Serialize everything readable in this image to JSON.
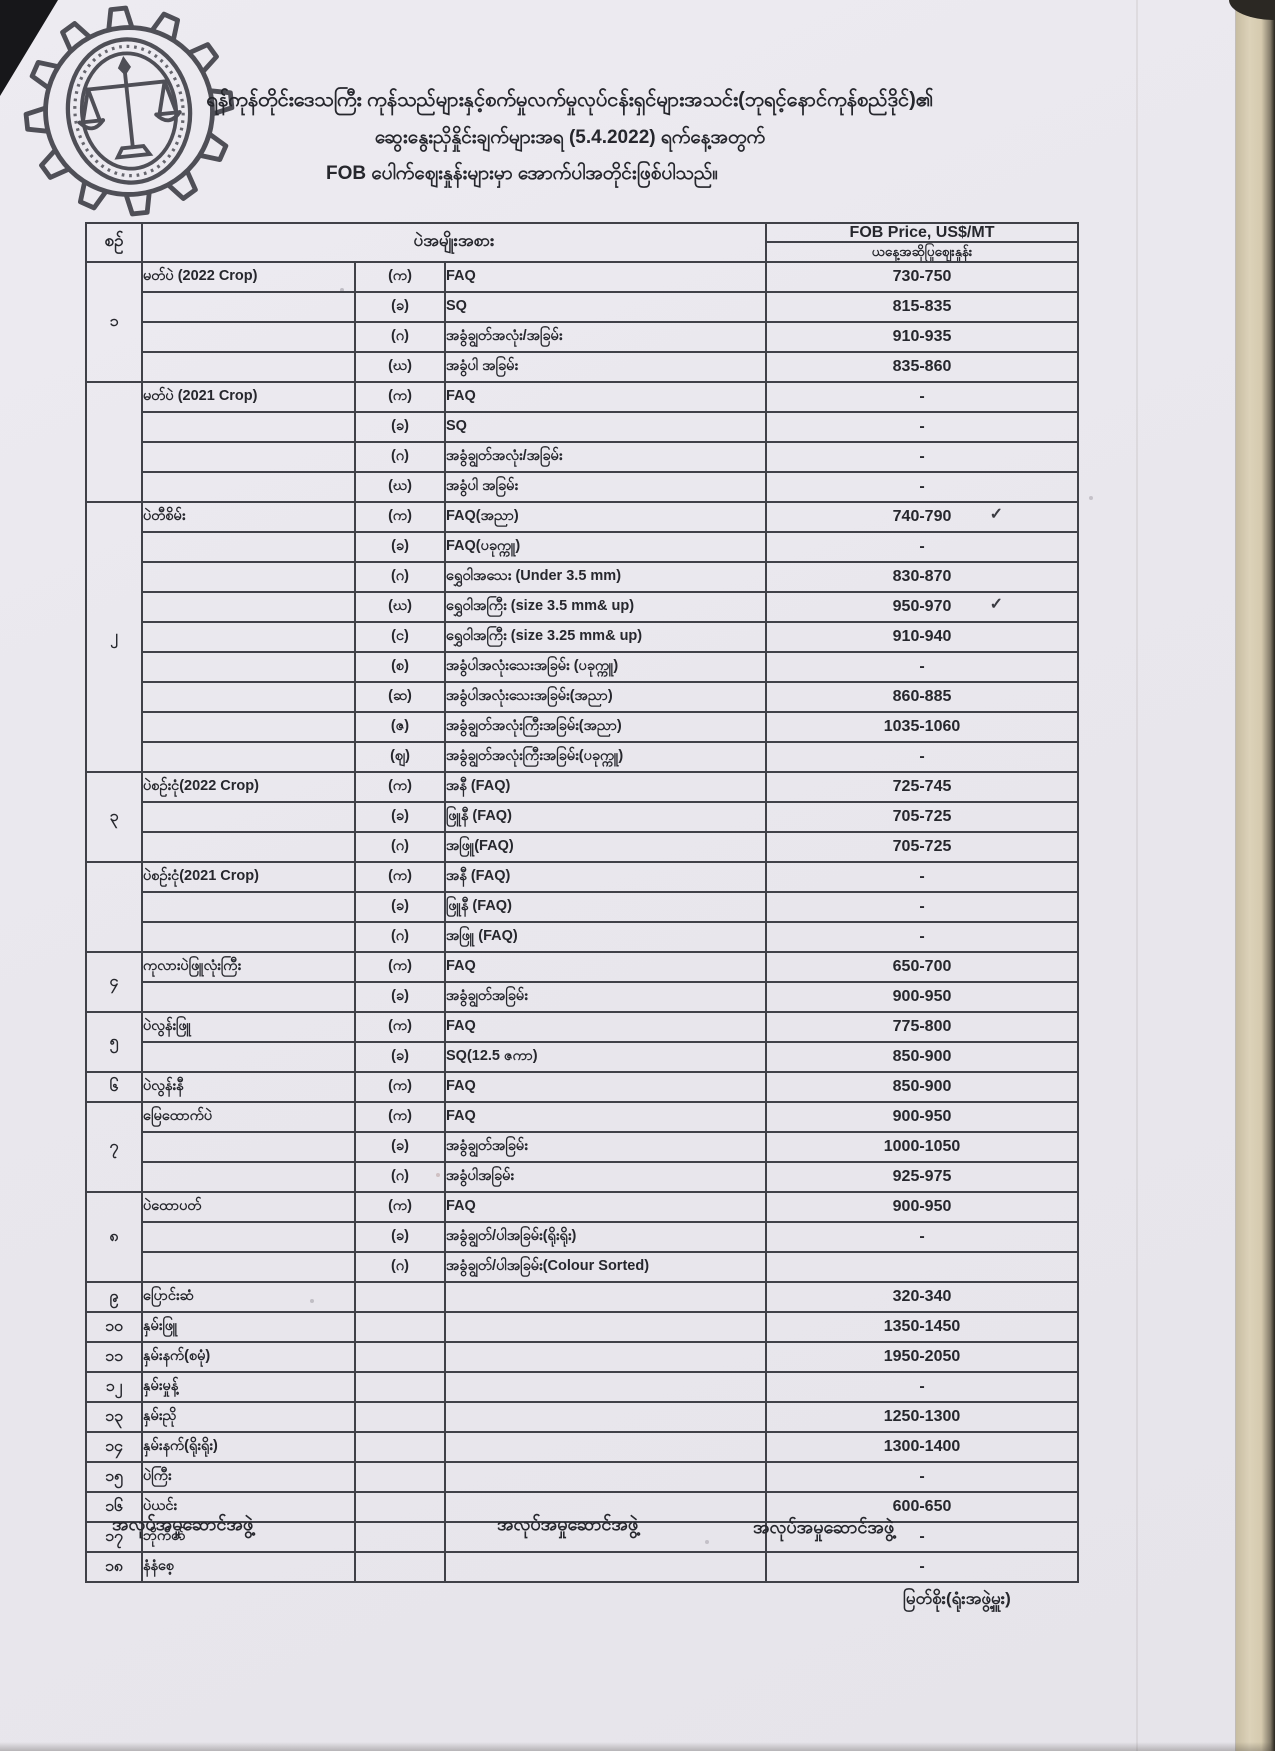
{
  "colors": {
    "paper": "#e9e7ec",
    "ink": "#26272d",
    "table_line": "#404148",
    "backing_strip": "#d8cdb2",
    "stamp_ink": "#3a3a42"
  },
  "title_lines": [
    "ရန်ကုန်တိုင်းဒေသကြီး ကုန်သည်များနှင့်စက်မှုလက်မှုလုပ်ငန်းရှင်များအသင်း(ဘုရင့်နောင်ကုန်စည်ဒိုင်)၏",
    "ဆွေးနွေးညှိနှိုင်းချက်များအရ (5.4.2022) ရက်နေ့အတွက်",
    "FOB ပေါက်ဈေးနှုန်းများမှာ အောက်ပါအတိုင်းဖြစ်ပါသည်။"
  ],
  "marks": {
    "check": "✓"
  },
  "table": {
    "header": {
      "no": "စဉ်",
      "item": "ပဲအမျိုးအစား",
      "price_line1": "FOB Price, US$/MT",
      "price_line2": "ယနေ့အဆိုပြုဈေးနှုန်း"
    },
    "rows": [
      {
        "no": "၁",
        "no_span": 4,
        "name": "မတ်ပဲ (2022 Crop)",
        "letter": "(က)",
        "desc": "FAQ",
        "price": "730-750"
      },
      {
        "letter": "(ခ)",
        "desc": "SQ",
        "price": "815-835"
      },
      {
        "letter": "(ဂ)",
        "desc": "အခွံချွတ်အလုံး/အခြမ်း",
        "price": "910-935"
      },
      {
        "letter": "(ဃ)",
        "desc": "အခွံပါ အခြမ်း",
        "price": "835-860"
      },
      {
        "no": "",
        "no_span": 4,
        "name": "မတ်ပဲ (2021 Crop)",
        "letter": "(က)",
        "desc": "FAQ",
        "price": "-"
      },
      {
        "letter": "(ခ)",
        "desc": "SQ",
        "price": "-"
      },
      {
        "letter": "(ဂ)",
        "desc": "အခွံချွတ်အလုံး/အခြမ်း",
        "price": "-"
      },
      {
        "letter": "(ဃ)",
        "desc": "အခွံပါ အခြမ်း",
        "price": "-"
      },
      {
        "no": "၂",
        "no_span": 9,
        "name": "ပဲတီစိမ်း",
        "letter": "(က)",
        "desc": "FAQ(အညာ)",
        "price": "740-790",
        "check": true
      },
      {
        "letter": "(ခ)",
        "desc": "FAQ(ပခုက္ကူ)",
        "price": "-"
      },
      {
        "letter": "(ဂ)",
        "desc": "ရွှေဝါအသေး (Under 3.5 mm)",
        "price": "830-870"
      },
      {
        "letter": "(ဃ)",
        "desc": "ရွှေဝါအကြီး (size 3.5 mm& up)",
        "price": "950-970",
        "check": true
      },
      {
        "letter": "(င)",
        "desc": "ရွှေဝါအကြီး (size 3.25 mm& up)",
        "price": "910-940"
      },
      {
        "letter": "(စ)",
        "desc": "အခွံပါအလုံးသေးအခြမ်း (ပခုက္ကူ)",
        "price": "-"
      },
      {
        "letter": "(ဆ)",
        "desc": "အခွံပါအလုံးသေးအခြမ်း(အညာ)",
        "price": "860-885"
      },
      {
        "letter": "(ဇ)",
        "desc": "အခွံချွတ်အလုံးကြီးအခြမ်း(အညာ)",
        "price": "1035-1060"
      },
      {
        "letter": "(ဈ)",
        "desc": "အခွံချွတ်အလုံးကြီးအခြမ်း(ပခုက္ကူ)",
        "price": "-"
      },
      {
        "no": "၃",
        "no_span": 3,
        "name": "ပဲစဉ်းငုံ(2022 Crop)",
        "letter": "(က)",
        "desc": "အနီ (FAQ)",
        "price": "725-745"
      },
      {
        "letter": "(ခ)",
        "desc": "ဖြူနီ (FAQ)",
        "price": "705-725"
      },
      {
        "letter": "(ဂ)",
        "desc": "အဖြူ(FAQ)",
        "price": "705-725"
      },
      {
        "no": "",
        "no_span": 3,
        "name": "ပဲစဉ်းငုံ(2021 Crop)",
        "letter": "(က)",
        "desc": "အနီ (FAQ)",
        "price": "-"
      },
      {
        "letter": "(ခ)",
        "desc": "ဖြူနီ (FAQ)",
        "price": "-"
      },
      {
        "letter": "(ဂ)",
        "desc": "အဖြူ (FAQ)",
        "price": "-"
      },
      {
        "no": "၄",
        "no_span": 2,
        "name": "ကုလားပဲဖြူလုံးကြီး",
        "letter": "(က)",
        "desc": "FAQ",
        "price": "650-700"
      },
      {
        "letter": "(ခ)",
        "desc": "အခွံချွတ်အခြမ်း",
        "price": "900-950"
      },
      {
        "no": "၅",
        "no_span": 2,
        "name": "ပဲလွန်းဖြူ",
        "letter": "(က)",
        "desc": "FAQ",
        "price": "775-800"
      },
      {
        "letter": "(ခ)",
        "desc": "SQ(12.5 ဇကာ)",
        "price": "850-900"
      },
      {
        "no": "၆",
        "no_span": 1,
        "name": "ပဲလွန်းနီ",
        "letter": "(က)",
        "desc": "FAQ",
        "price": "850-900"
      },
      {
        "no": "၇",
        "no_span": 3,
        "name": "မြေထောက်ပဲ",
        "letter": "(က)",
        "desc": "FAQ",
        "price": "900-950"
      },
      {
        "letter": "(ခ)",
        "desc": "အခွံချွတ်အခြမ်း",
        "price": "1000-1050"
      },
      {
        "letter": "(ဂ)",
        "desc": "အခွံပါအခြမ်း",
        "price": "925-975"
      },
      {
        "no": "၈",
        "no_span": 3,
        "name": "ပဲထောပတ်",
        "letter": "(က)",
        "desc": "FAQ",
        "price": "900-950"
      },
      {
        "letter": "(ခ)",
        "desc": "အခွံချွတ်/ပါအခြမ်း(ရိုးရိုး)",
        "price": "-"
      },
      {
        "letter": "(ဂ)",
        "desc": "အခွံချွတ်/ပါအခြမ်း(Colour Sorted)",
        "price": ""
      },
      {
        "no": "၉",
        "no_span": 1,
        "name": "ပြောင်းဆံ",
        "letter": "",
        "desc": "",
        "price": "320-340"
      },
      {
        "no": "၁၀",
        "no_span": 1,
        "name": "နှမ်းဖြူ",
        "letter": "",
        "desc": "",
        "price": "1350-1450"
      },
      {
        "no": "၁၁",
        "no_span": 1,
        "name": "နှမ်းနက်(စမုံ)",
        "letter": "",
        "desc": "",
        "price": "1950-2050"
      },
      {
        "no": "၁၂",
        "no_span": 1,
        "name": "နှမ်းမှုန့်",
        "letter": "",
        "desc": "",
        "price": "-"
      },
      {
        "no": "၁၃",
        "no_span": 1,
        "name": "နှမ်းညို",
        "letter": "",
        "desc": "",
        "price": "1250-1300"
      },
      {
        "no": "၁၄",
        "no_span": 1,
        "name": "နှမ်းနက်(ရိုးရိုး)",
        "letter": "",
        "desc": "",
        "price": "1300-1400"
      },
      {
        "no": "၁၅",
        "no_span": 1,
        "name": "ပဲကြီး",
        "letter": "",
        "desc": "",
        "price": "-"
      },
      {
        "no": "၁၆",
        "no_span": 1,
        "name": "ပဲယင်း",
        "letter": "",
        "desc": "",
        "price": "600-650"
      },
      {
        "no": "၁၇",
        "no_span": 1,
        "name": "ဘိုကိတ်",
        "letter": "",
        "desc": "",
        "price": "-"
      },
      {
        "no": "၁၈",
        "no_span": 1,
        "name": "နံနံစေ့",
        "letter": "",
        "desc": "",
        "price": "-"
      }
    ]
  },
  "footer": {
    "committee_label": "အလုပ်အမှုဆောင်အဖွဲ့",
    "signature": "မြတ်စိုး(ရုံးအဖွဲ့မှူး)"
  }
}
